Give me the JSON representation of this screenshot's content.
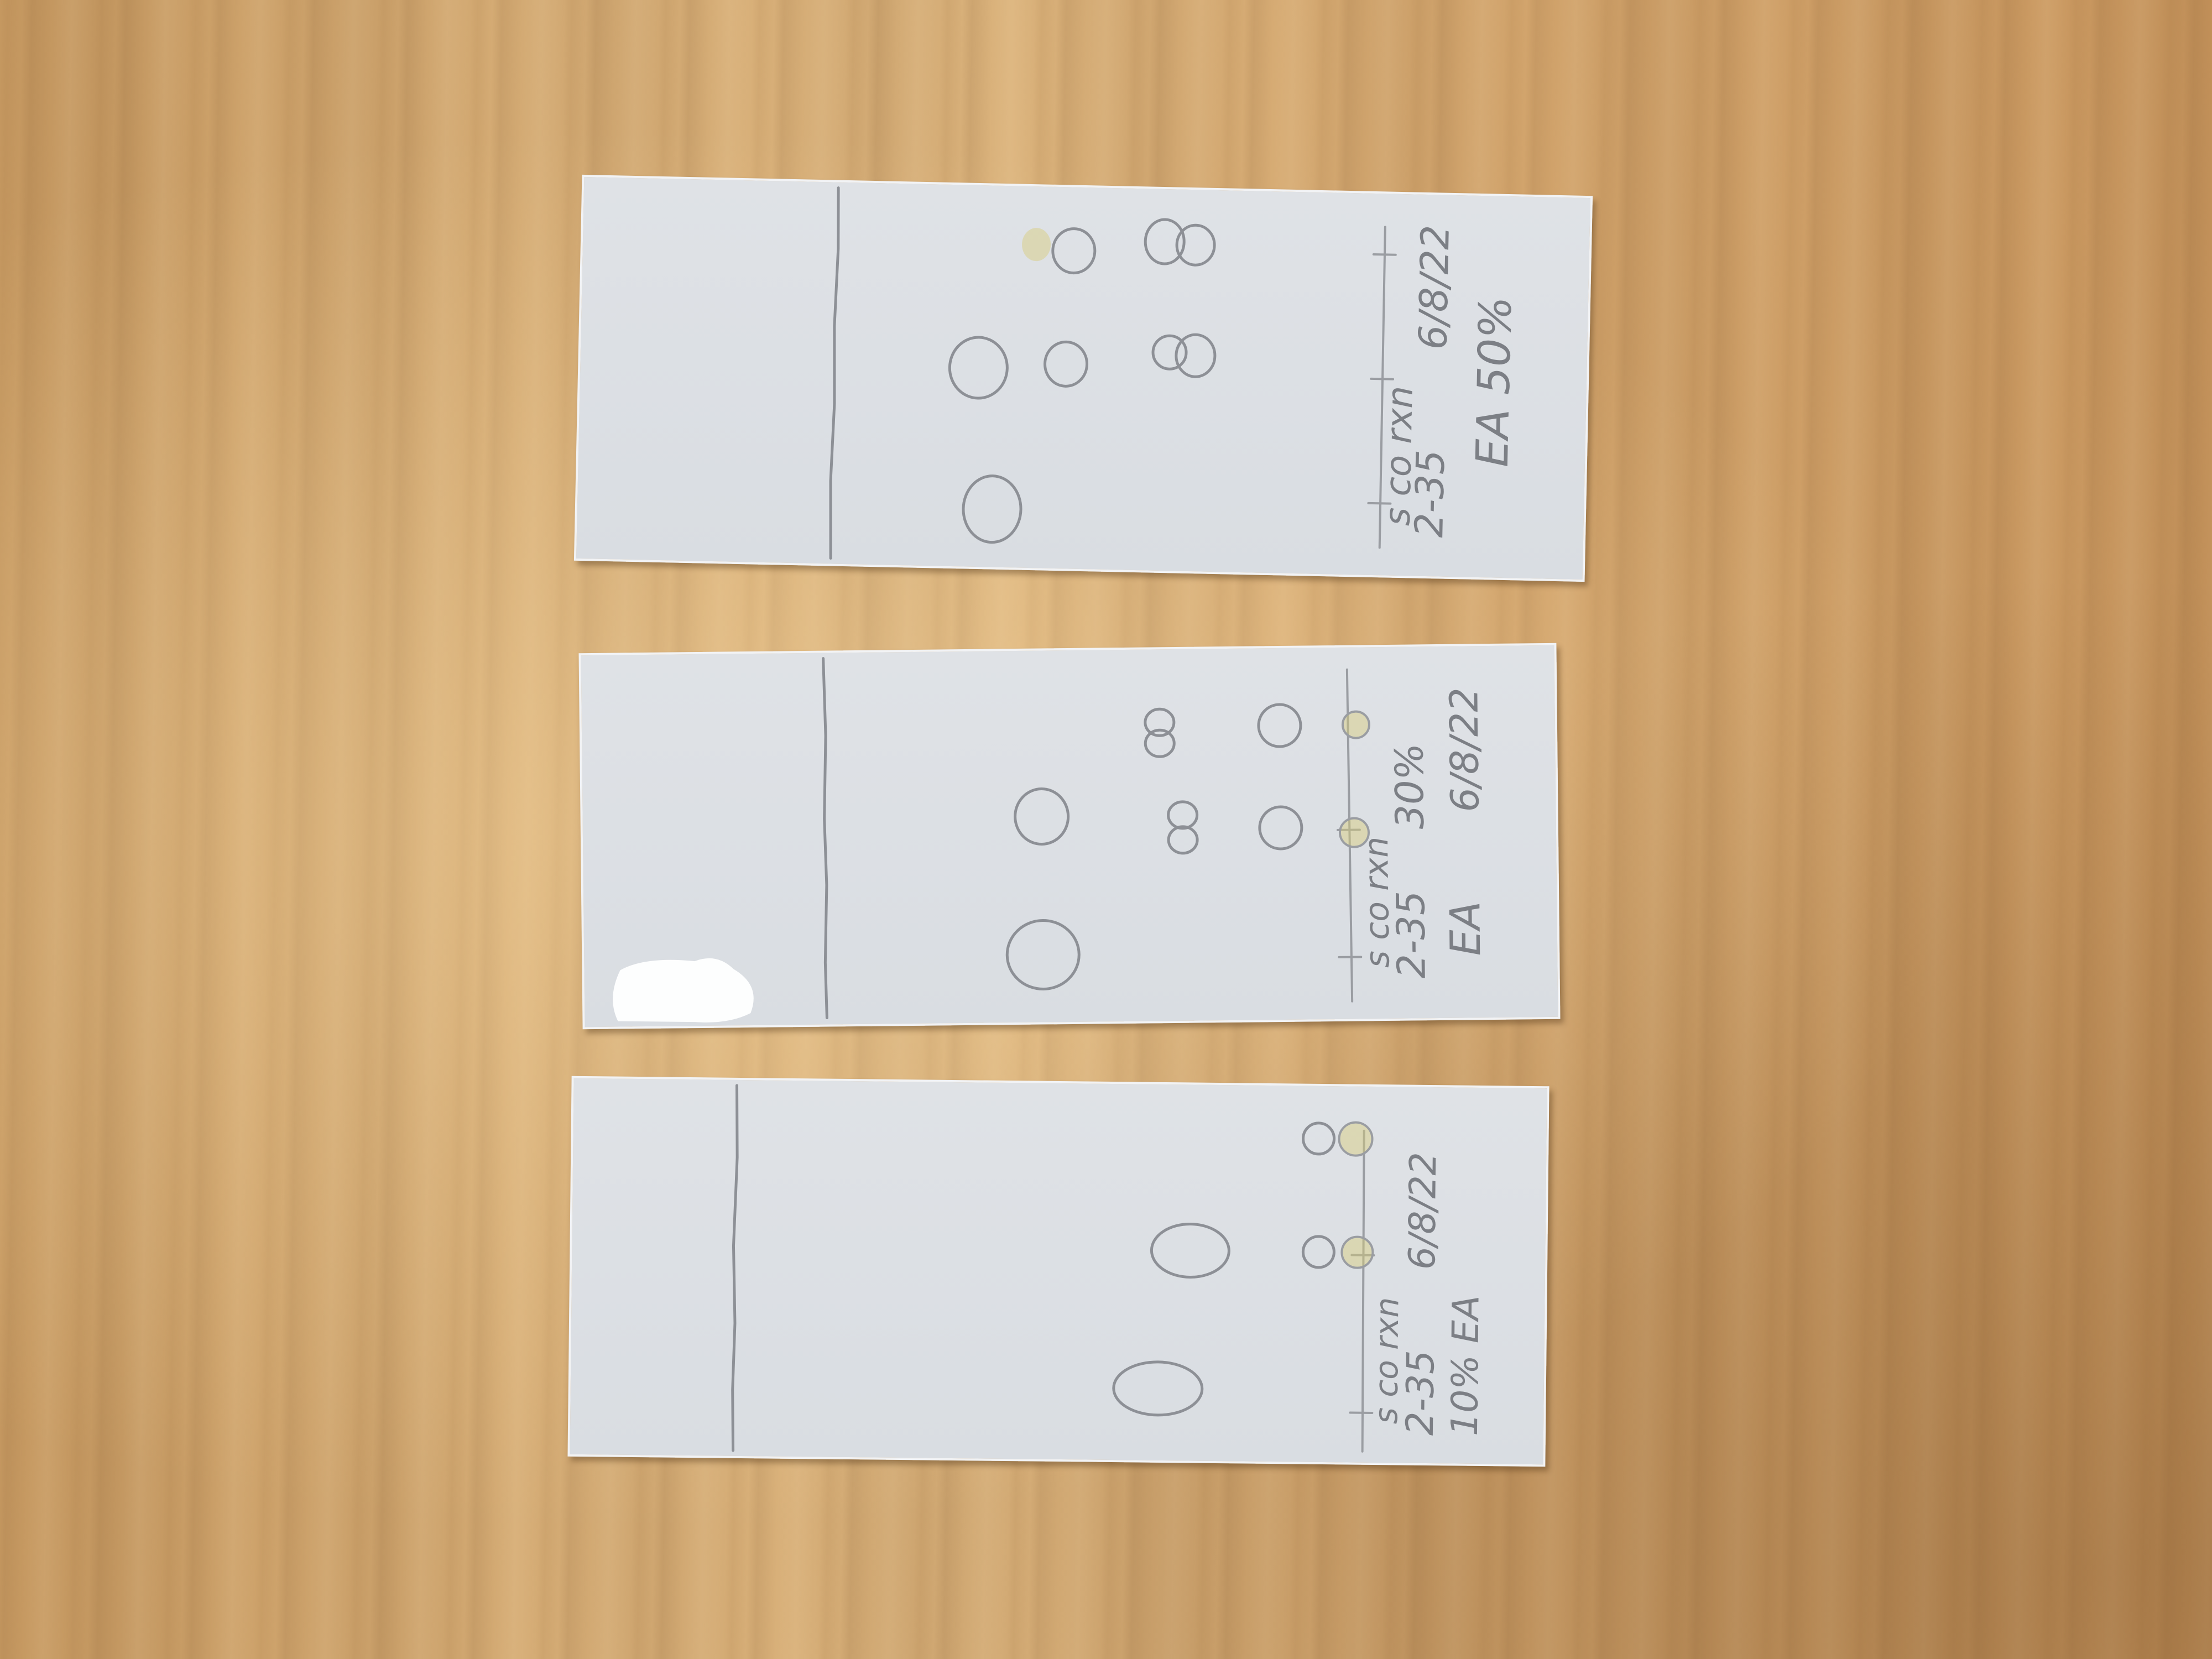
{
  "plates": [
    {
      "lanes_label": "s  co  rxn",
      "sample_label": "2-35",
      "date_label": "6/8/22",
      "solvent_label": "EA 50%"
    },
    {
      "lanes_label": "s  co  rxn",
      "sample_label": "2-35",
      "solvent_label": "30%",
      "eluent_label": "EA",
      "date_label": "6/8/22"
    },
    {
      "lanes_label": "s  co  rxn",
      "sample_label": "2-35",
      "date_label": "6/8/22",
      "solvent_label": "10%  EA"
    }
  ]
}
